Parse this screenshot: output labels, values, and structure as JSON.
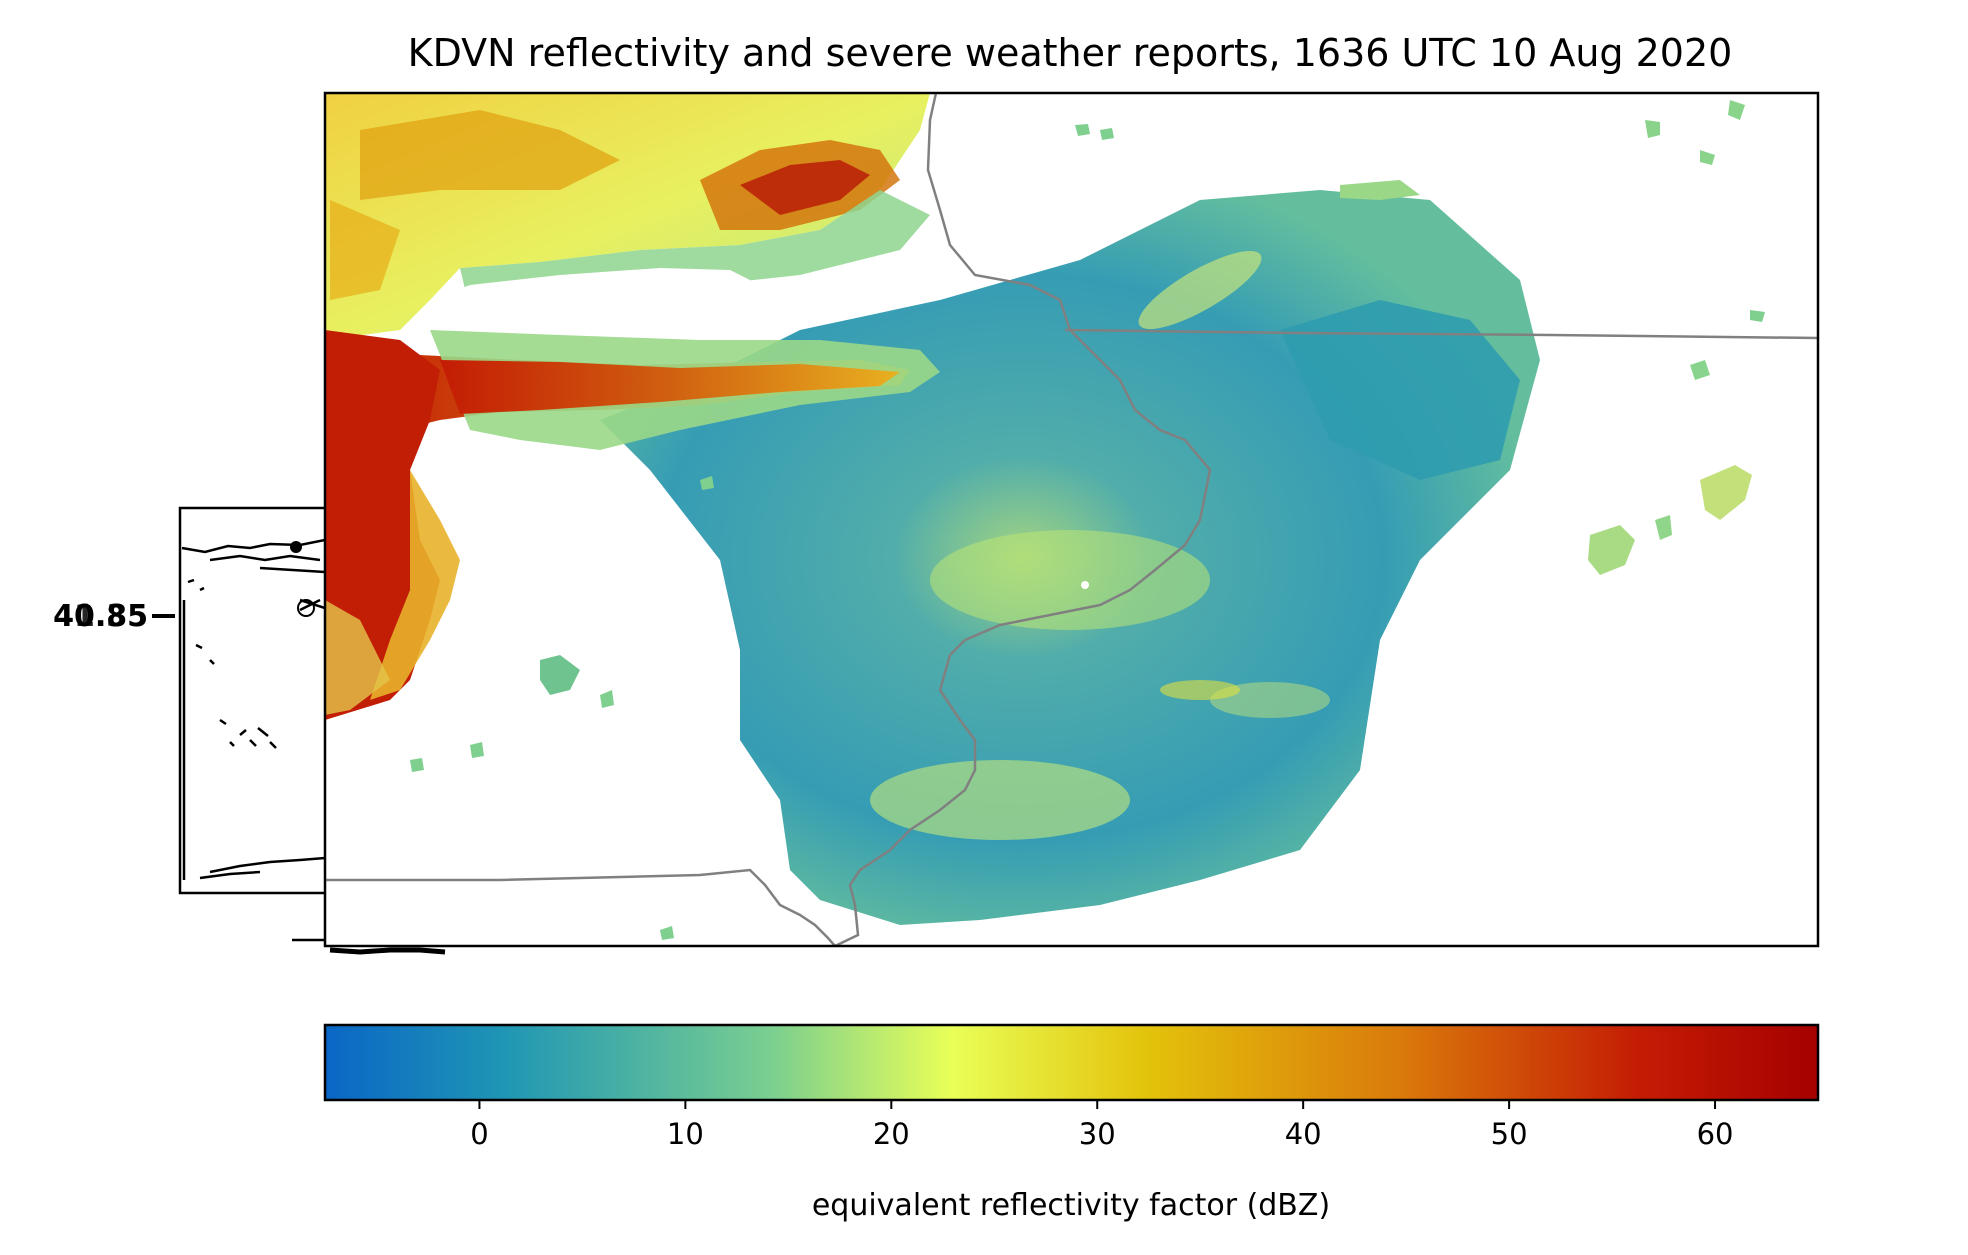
{
  "title": "KDVN reflectivity and severe weather reports, 1636 UTC 10 Aug 2020",
  "inset": {
    "overlapping_lat_labels": [
      "40.85",
      "41.35"
    ]
  },
  "colorbar": {
    "label": "equivalent reflectivity factor (dBZ)",
    "vmin": -7.5,
    "vmax": 65,
    "ticks": [
      "0",
      "10",
      "20",
      "30",
      "40",
      "50",
      "60"
    ],
    "colormap_stops": [
      "#0a66c6",
      "#1f96b4",
      "#7bcf8f",
      "#e9ff57",
      "#e3c30b",
      "#da7a0b",
      "#c41c04",
      "#a60000"
    ]
  },
  "colors": {
    "state_border": "#808080",
    "frame": "#000000"
  }
}
